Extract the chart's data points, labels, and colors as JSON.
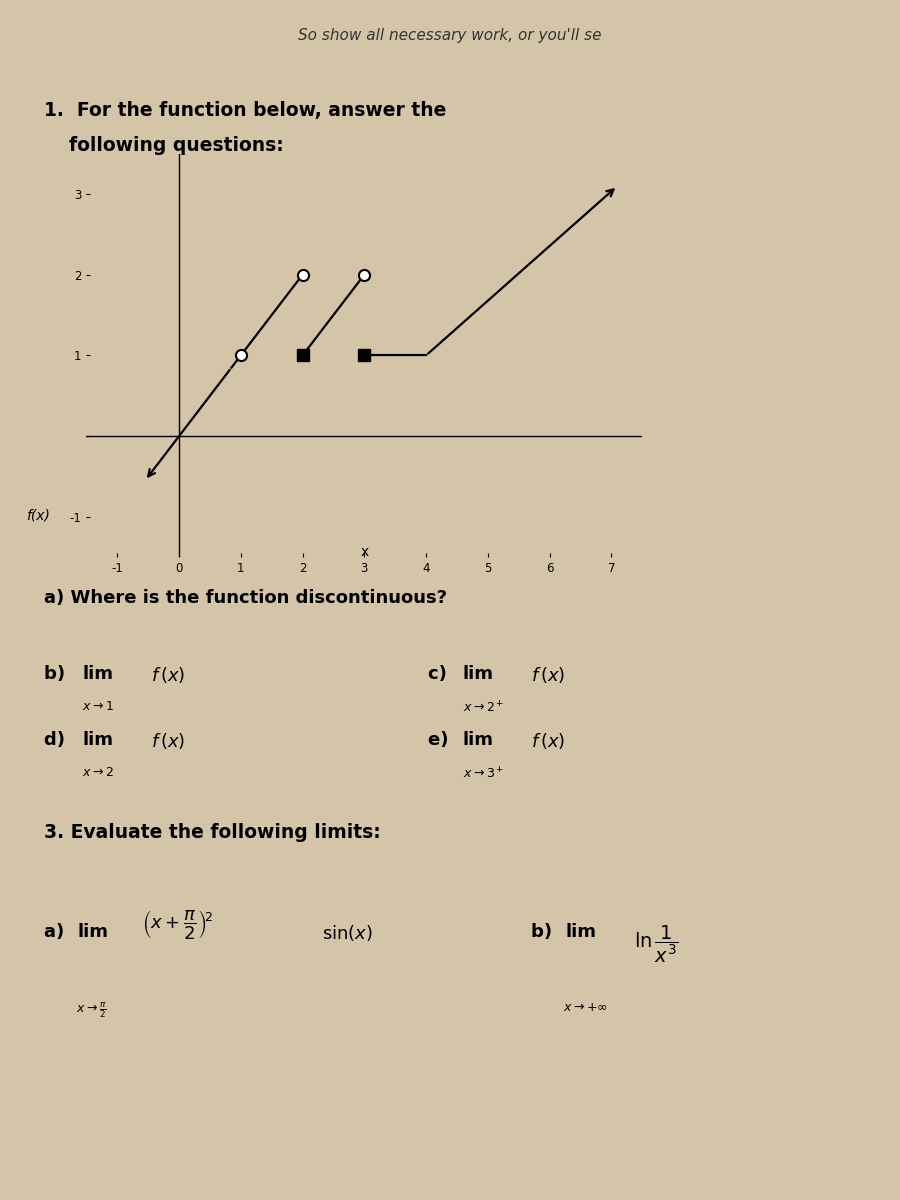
{
  "bg_color": "#d4c5a9",
  "box1_facecolor": "#e8dcc8",
  "box2_facecolor": "#e8dcc8",
  "header_text": "So show all necessary work, or you'll se",
  "title_line1": "1.  For the function below, answer the",
  "title_line2": "    following questions:",
  "q_a": "a) Where is the function discontinuous?",
  "sec3_title": "3. Evaluate the following limits:",
  "graph_xlim": [
    -1.5,
    7.5
  ],
  "graph_ylim": [
    -1.5,
    3.5
  ],
  "xtick_labels": [
    "-1",
    "0",
    "1",
    "2",
    "3",
    "4",
    "5",
    "6",
    "7"
  ],
  "ytick_labels": [
    "-1",
    "",
    "1",
    "2",
    "3"
  ],
  "xticks": [
    -1,
    0,
    1,
    2,
    3,
    4,
    5,
    6,
    7
  ],
  "yticks": [
    -1,
    0,
    1,
    2,
    3
  ]
}
